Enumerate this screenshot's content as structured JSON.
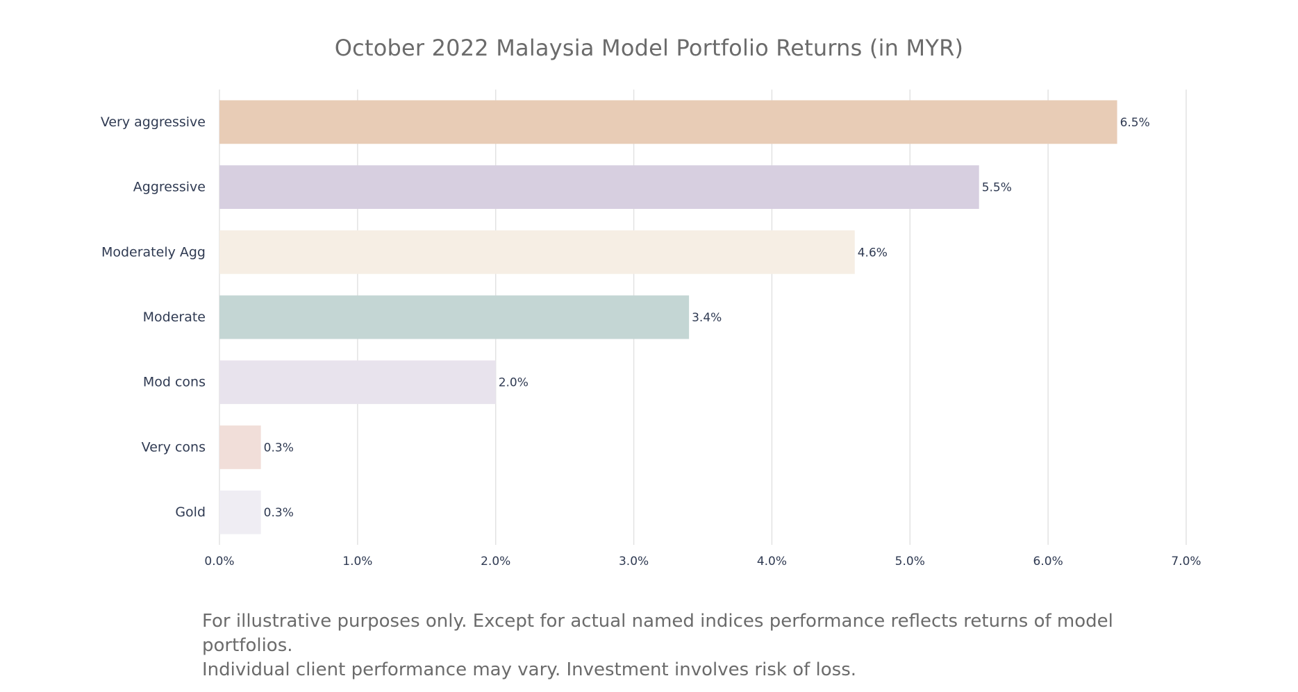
{
  "chart_data": {
    "type": "bar",
    "orientation": "horizontal",
    "title": "October 2022 Malaysia Model Portfolio Returns (in MYR)",
    "categories": [
      "Very aggressive",
      "Aggressive",
      "Moderately Agg",
      "Moderate",
      "Mod cons",
      "Very cons",
      "Gold"
    ],
    "values": [
      6.5,
      5.5,
      4.6,
      3.4,
      2.0,
      0.3,
      0.3
    ],
    "value_labels": [
      "6.5%",
      "5.5%",
      "4.6%",
      "3.4%",
      "2.0%",
      "0.3%",
      "0.3%"
    ],
    "colors": [
      "#e8ccb6",
      "#d7cfe0",
      "#f6eee4",
      "#c4d6d4",
      "#e8e3ed",
      "#f1ded9",
      "#efedf3"
    ],
    "xlim": [
      0,
      7
    ],
    "xticks": [
      0,
      1,
      2,
      3,
      4,
      5,
      6,
      7
    ],
    "xtick_labels": [
      "0.0%",
      "1.0%",
      "2.0%",
      "3.0%",
      "4.0%",
      "5.0%",
      "6.0%",
      "7.0%"
    ],
    "xlabel": "",
    "ylabel": "",
    "grid": true,
    "legend": "none"
  },
  "footnote": {
    "line1": "For illustrative purposes only. Except for actual named indices performance reflects returns of model portfolios.",
    "line2": "Individual client performance may vary. Investment involves risk of loss."
  }
}
